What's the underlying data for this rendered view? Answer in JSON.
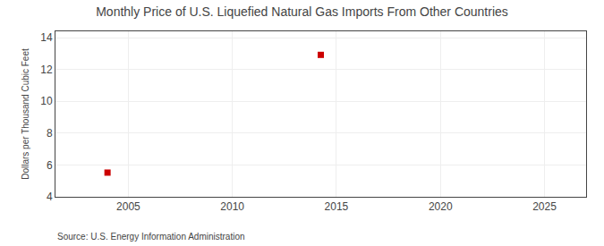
{
  "chart_data": {
    "type": "scatter",
    "title": "Monthly Price of U.S. Liquefied Natural Gas Imports From Other Countries",
    "ylabel": "Dollars per Thousand Cubic Feet",
    "annotations": [
      "Source: U.S. Energy Information Administration"
    ],
    "x": [
      2004.0,
      2014.25
    ],
    "values": [
      5.52,
      12.92
    ],
    "color": "#cc0000",
    "marker": "square",
    "xlim": [
      2001.5,
      2027
    ],
    "ylim": [
      4,
      14.4
    ],
    "xticks": [
      2005,
      2010,
      2015,
      2020,
      2025
    ],
    "yticks": [
      4,
      6,
      8,
      10,
      12,
      14
    ],
    "grid": true
  }
}
